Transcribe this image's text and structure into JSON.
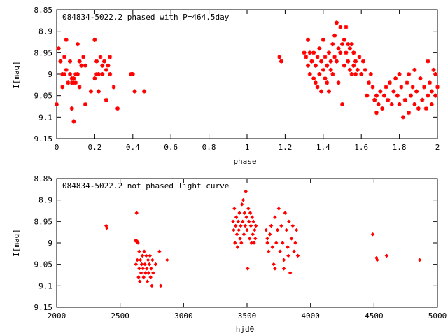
{
  "chart_data": [
    {
      "type": "scatter",
      "title": "084834-5022.2 phased with P=464.5day",
      "xlabel": "phase",
      "ylabel": "I[mag]",
      "xlim": [
        0,
        2
      ],
      "ylim": [
        9.15,
        8.85
      ],
      "y_inverted": true,
      "xticks": [
        "0",
        "0.2",
        "0.4",
        "0.6",
        "0.8",
        "1",
        "1.2",
        "1.4",
        "1.6",
        "1.8",
        "2"
      ],
      "yticks": [
        "8.85",
        "8.9",
        "8.95",
        "9",
        "9.05",
        "9.1",
        "9.15"
      ],
      "grid": false,
      "marker_color": "#ff0000",
      "series": [
        {
          "points": [
            [
              0.0,
              9.07
            ],
            [
              0.01,
              8.94
            ],
            [
              0.02,
              8.97
            ],
            [
              0.03,
              9.0
            ],
            [
              0.03,
              9.03
            ],
            [
              0.04,
              8.96
            ],
            [
              0.04,
              9.0
            ],
            [
              0.05,
              8.92
            ],
            [
              0.05,
              8.99
            ],
            [
              0.06,
              9.02
            ],
            [
              0.07,
              9.0
            ],
            [
              0.07,
              8.97
            ],
            [
              0.08,
              9.02
            ],
            [
              0.08,
              9.01
            ],
            [
              0.09,
              9.02
            ],
            [
              0.09,
              9.01
            ],
            [
              0.1,
              9.0
            ],
            [
              0.1,
              9.02
            ],
            [
              0.11,
              9.0
            ],
            [
              0.12,
              8.97
            ],
            [
              0.12,
              9.03
            ],
            [
              0.13,
              8.98
            ],
            [
              0.14,
              8.96
            ],
            [
              0.15,
              8.98
            ],
            [
              0.15,
              9.07
            ],
            [
              0.08,
              9.08
            ],
            [
              0.09,
              9.11
            ],
            [
              0.11,
              8.93
            ],
            [
              0.2,
              8.92
            ],
            [
              0.21,
              8.97
            ],
            [
              0.21,
              9.0
            ],
            [
              0.22,
              9.0
            ],
            [
              0.22,
              9.04
            ],
            [
              0.23,
              8.96
            ],
            [
              0.24,
              8.98
            ],
            [
              0.24,
              9.0
            ],
            [
              0.25,
              8.97
            ],
            [
              0.26,
              8.99
            ],
            [
              0.26,
              9.06
            ],
            [
              0.27,
              8.98
            ],
            [
              0.28,
              9.0
            ],
            [
              0.28,
              8.96
            ],
            [
              0.3,
              9.03
            ],
            [
              0.32,
              9.08
            ],
            [
              0.39,
              9.0
            ],
            [
              0.4,
              9.0
            ],
            [
              0.41,
              9.04
            ],
            [
              0.46,
              9.04
            ],
            [
              0.18,
              9.04
            ],
            [
              0.2,
              9.01
            ],
            [
              1.17,
              8.96
            ],
            [
              1.18,
              8.97
            ],
            [
              1.3,
              8.95
            ],
            [
              1.31,
              8.96
            ],
            [
              1.32,
              8.92
            ],
            [
              1.32,
              8.98
            ],
            [
              1.33,
              8.95
            ],
            [
              1.33,
              9.0
            ],
            [
              1.34,
              8.97
            ],
            [
              1.35,
              8.95
            ],
            [
              1.35,
              9.01
            ],
            [
              1.36,
              8.98
            ],
            [
              1.36,
              9.02
            ],
            [
              1.37,
              8.96
            ],
            [
              1.37,
              9.03
            ],
            [
              1.38,
              8.94
            ],
            [
              1.38,
              9.0
            ],
            [
              1.39,
              8.97
            ],
            [
              1.39,
              9.04
            ],
            [
              1.4,
              8.92
            ],
            [
              1.4,
              8.99
            ],
            [
              1.41,
              8.96
            ],
            [
              1.41,
              9.01
            ],
            [
              1.42,
              8.98
            ],
            [
              1.42,
              9.02
            ],
            [
              1.43,
              8.95
            ],
            [
              1.43,
              9.04
            ],
            [
              1.44,
              8.97
            ],
            [
              1.44,
              8.99
            ],
            [
              1.45,
              8.93
            ],
            [
              1.45,
              9.0
            ],
            [
              1.46,
              8.91
            ],
            [
              1.46,
              8.96
            ],
            [
              1.47,
              8.88
            ],
            [
              1.47,
              8.97
            ],
            [
              1.48,
              8.94
            ],
            [
              1.48,
              9.02
            ],
            [
              1.49,
              8.89
            ],
            [
              1.49,
              8.95
            ],
            [
              1.5,
              8.93
            ],
            [
              1.5,
              9.07
            ],
            [
              1.51,
              8.92
            ],
            [
              1.51,
              8.98
            ],
            [
              1.52,
              8.89
            ],
            [
              1.52,
              8.95
            ],
            [
              1.53,
              8.93
            ],
            [
              1.53,
              8.97
            ],
            [
              1.54,
              8.94
            ],
            [
              1.54,
              8.99
            ],
            [
              1.55,
              8.93
            ],
            [
              1.55,
              9.0
            ],
            [
              1.56,
              8.95
            ],
            [
              1.56,
              8.98
            ],
            [
              1.57,
              8.97
            ],
            [
              1.57,
              9.0
            ],
            [
              1.58,
              8.99
            ],
            [
              1.59,
              8.96
            ],
            [
              1.6,
              9.0
            ],
            [
              1.61,
              8.97
            ],
            [
              1.62,
              8.99
            ],
            [
              1.63,
              9.05
            ],
            [
              1.64,
              9.02
            ],
            [
              1.65,
              9.0
            ],
            [
              1.66,
              9.03
            ],
            [
              1.67,
              9.06
            ],
            [
              1.68,
              9.09
            ],
            [
              1.68,
              9.05
            ],
            [
              1.69,
              9.07
            ],
            [
              1.7,
              9.04
            ],
            [
              1.71,
              9.08
            ],
            [
              1.72,
              9.05
            ],
            [
              1.73,
              9.03
            ],
            [
              1.74,
              9.06
            ],
            [
              1.75,
              9.02
            ],
            [
              1.76,
              9.07
            ],
            [
              1.77,
              9.04
            ],
            [
              1.78,
              9.01
            ],
            [
              1.79,
              9.05
            ],
            [
              1.8,
              9.07
            ],
            [
              1.81,
              9.03
            ],
            [
              1.82,
              9.1
            ],
            [
              1.83,
              9.06
            ],
            [
              1.84,
              9.02
            ],
            [
              1.85,
              9.09
            ],
            [
              1.86,
              9.05
            ],
            [
              1.87,
              9.03
            ],
            [
              1.88,
              9.07
            ],
            [
              1.89,
              9.04
            ],
            [
              1.9,
              9.08
            ],
            [
              1.91,
              9.01
            ],
            [
              1.92,
              9.06
            ],
            [
              1.93,
              9.03
            ],
            [
              1.94,
              9.08
            ],
            [
              1.95,
              9.05
            ],
            [
              1.96,
              9.02
            ],
            [
              1.97,
              9.07
            ],
            [
              1.98,
              8.99
            ],
            [
              1.99,
              9.05
            ],
            [
              2.0,
              9.03
            ],
            [
              1.8,
              9.0
            ],
            [
              1.85,
              9.0
            ],
            [
              1.88,
              8.99
            ],
            [
              1.95,
              8.97
            ],
            [
              1.97,
              9.04
            ],
            [
              1.99,
              9.0
            ]
          ]
        }
      ]
    },
    {
      "type": "scatter",
      "title": "084834-5022.2 not phased light curve",
      "xlabel": "hjd0",
      "ylabel": "I[mag]",
      "xlim": [
        2000,
        5000
      ],
      "ylim": [
        9.15,
        8.85
      ],
      "y_inverted": true,
      "xticks": [
        "2000",
        "2500",
        "3000",
        "3500",
        "4000",
        "4500",
        "5000"
      ],
      "yticks": [
        "8.85",
        "8.9",
        "8.95",
        "9",
        "9.05",
        "9.1",
        "9.15"
      ],
      "grid": false,
      "marker_color": "#ff0000",
      "series": [
        {
          "points": [
            [
              2390,
              8.96
            ],
            [
              2395,
              8.965
            ],
            [
              2620,
              8.995
            ],
            [
              2625,
              9.05
            ],
            [
              2630,
              8.995
            ],
            [
              2635,
              9.04
            ],
            [
              2640,
              9.0
            ],
            [
              2645,
              9.08
            ],
            [
              2650,
              9.06
            ],
            [
              2650,
              9.02
            ],
            [
              2655,
              9.09
            ],
            [
              2660,
              9.04
            ],
            [
              2665,
              9.07
            ],
            [
              2670,
              9.05
            ],
            [
              2675,
              9.03
            ],
            [
              2680,
              9.06
            ],
            [
              2685,
              9.08
            ],
            [
              2690,
              9.02
            ],
            [
              2695,
              9.05
            ],
            [
              2700,
              9.07
            ],
            [
              2705,
              9.03
            ],
            [
              2710,
              9.06
            ],
            [
              2715,
              9.09
            ],
            [
              2720,
              9.04
            ],
            [
              2725,
              9.07
            ],
            [
              2730,
              9.05
            ],
            [
              2735,
              9.03
            ],
            [
              2740,
              9.08
            ],
            [
              2745,
              9.06
            ],
            [
              2750,
              9.1
            ],
            [
              2755,
              9.04
            ],
            [
              2760,
              9.07
            ],
            [
              2780,
              9.05
            ],
            [
              2810,
              9.02
            ],
            [
              2820,
              9.1
            ],
            [
              2870,
              9.04
            ],
            [
              2630,
              8.93
            ],
            [
              3390,
              8.95
            ],
            [
              3395,
              8.97
            ],
            [
              3400,
              8.92
            ],
            [
              3405,
              9.0
            ],
            [
              3410,
              8.96
            ],
            [
              3415,
              8.94
            ],
            [
              3420,
              8.98
            ],
            [
              3425,
              9.01
            ],
            [
              3430,
              8.95
            ],
            [
              3435,
              8.97
            ],
            [
              3440,
              8.93
            ],
            [
              3445,
              8.99
            ],
            [
              3450,
              8.96
            ],
            [
              3455,
              9.0
            ],
            [
              3460,
              8.91
            ],
            [
              3465,
              8.95
            ],
            [
              3470,
              8.9
            ],
            [
              3475,
              8.98
            ],
            [
              3480,
              8.93
            ],
            [
              3485,
              8.96
            ],
            [
              3490,
              8.88
            ],
            [
              3495,
              8.94
            ],
            [
              3500,
              8.97
            ],
            [
              3505,
              9.06
            ],
            [
              3510,
              8.92
            ],
            [
              3515,
              8.95
            ],
            [
              3520,
              8.99
            ],
            [
              3525,
              8.93
            ],
            [
              3530,
              8.96
            ],
            [
              3535,
              9.0
            ],
            [
              3540,
              8.94
            ],
            [
              3545,
              8.98
            ],
            [
              3550,
              8.95
            ],
            [
              3555,
              9.0
            ],
            [
              3560,
              8.97
            ],
            [
              3565,
              8.99
            ],
            [
              3570,
              8.96
            ],
            [
              3650,
              8.97
            ],
            [
              3660,
              9.0
            ],
            [
              3670,
              9.02
            ],
            [
              3680,
              8.98
            ],
            [
              3690,
              8.96
            ],
            [
              3700,
              9.01
            ],
            [
              3710,
              9.05
            ],
            [
              3720,
              8.94
            ],
            [
              3730,
              9.0
            ],
            [
              3740,
              8.97
            ],
            [
              3750,
              8.92
            ],
            [
              3760,
              9.02
            ],
            [
              3770,
              8.96
            ],
            [
              3780,
              9.0
            ],
            [
              3790,
              9.04
            ],
            [
              3800,
              8.93
            ],
            [
              3810,
              8.97
            ],
            [
              3820,
              9.01
            ],
            [
              3830,
              8.95
            ],
            [
              3840,
              9.07
            ],
            [
              3850,
              8.99
            ],
            [
              3860,
              8.96
            ],
            [
              3870,
              9.02
            ],
            [
              3880,
              9.0
            ],
            [
              3890,
              8.97
            ],
            [
              3900,
              9.03
            ],
            [
              3660,
              8.99
            ],
            [
              3720,
              9.06
            ],
            [
              3790,
              9.06
            ],
            [
              3825,
              9.03
            ],
            [
              4490,
              8.98
            ],
            [
              4520,
              9.035
            ],
            [
              4525,
              9.04
            ],
            [
              4600,
              9.03
            ],
            [
              4860,
              9.04
            ]
          ]
        }
      ]
    }
  ]
}
